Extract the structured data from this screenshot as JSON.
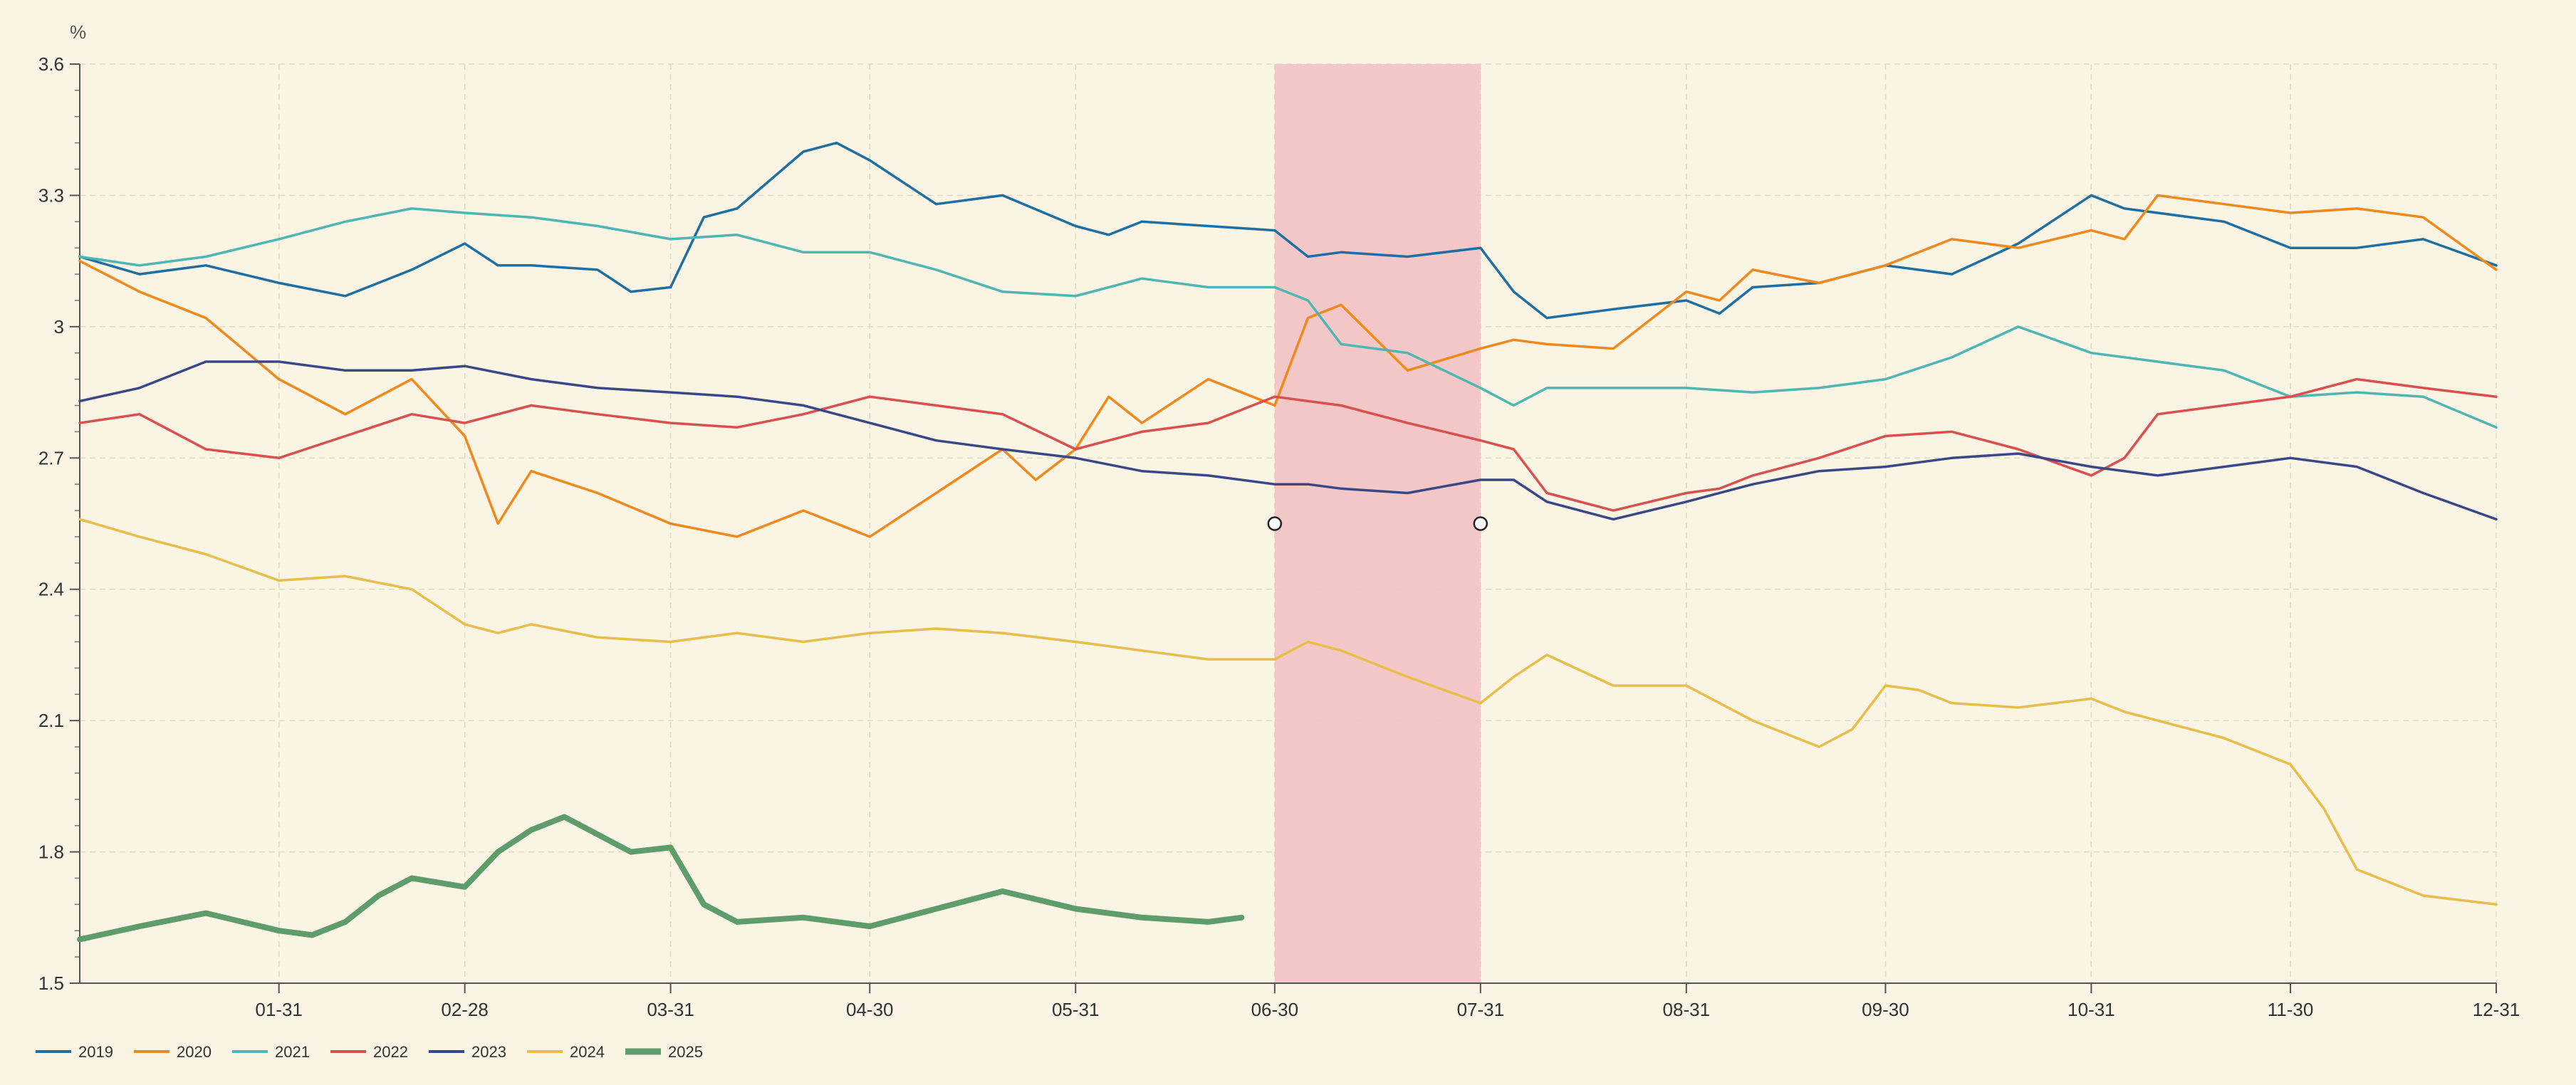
{
  "chart_data": {
    "type": "line",
    "unit_label": "%",
    "ylim": [
      1.5,
      3.6
    ],
    "y_ticks": [
      "1.5",
      "1.8",
      "2.1",
      "2.4",
      "2.7",
      "3",
      "3.3",
      "3.6"
    ],
    "x_ticks": [
      "01-31",
      "02-28",
      "03-31",
      "04-30",
      "05-31",
      "06-30",
      "07-31",
      "08-31",
      "09-30",
      "10-31",
      "11-30",
      "12-31"
    ],
    "grid": true,
    "legend_position": "bottom-left",
    "shaded_region": {
      "start": "06-30",
      "end": "07-31",
      "color": "#f2c4c6"
    },
    "markers": [
      {
        "x": "06-30",
        "y": 2.55
      },
      {
        "x": "07-31",
        "y": 2.55
      }
    ],
    "series": [
      {
        "name": "2019",
        "color": "#1f6fa3",
        "x": [
          "01-01",
          "01-10",
          "01-20",
          "01-31",
          "02-10",
          "02-20",
          "02-28",
          "03-05",
          "03-10",
          "03-20",
          "03-25",
          "03-31",
          "04-05",
          "04-10",
          "04-20",
          "04-25",
          "04-30",
          "05-10",
          "05-20",
          "05-31",
          "06-05",
          "06-10",
          "06-20",
          "06-30",
          "07-05",
          "07-10",
          "07-20",
          "07-31",
          "08-05",
          "08-10",
          "08-20",
          "08-31",
          "09-05",
          "09-10",
          "09-20",
          "09-30",
          "10-10",
          "10-20",
          "10-31",
          "11-05",
          "11-10",
          "11-20",
          "11-30",
          "12-10",
          "12-20",
          "12-31"
        ],
        "values": [
          3.16,
          3.12,
          3.14,
          3.1,
          3.07,
          3.13,
          3.19,
          3.14,
          3.14,
          3.13,
          3.08,
          3.09,
          3.25,
          3.27,
          3.4,
          3.42,
          3.38,
          3.28,
          3.3,
          3.23,
          3.21,
          3.24,
          3.23,
          3.22,
          3.16,
          3.17,
          3.16,
          3.18,
          3.08,
          3.02,
          3.04,
          3.06,
          3.03,
          3.09,
          3.1,
          3.14,
          3.12,
          3.19,
          3.3,
          3.27,
          3.26,
          3.24,
          3.18,
          3.18,
          3.2,
          3.14
        ]
      },
      {
        "name": "2020",
        "color": "#f0891d",
        "x": [
          "01-01",
          "01-10",
          "01-20",
          "01-31",
          "02-10",
          "02-20",
          "02-28",
          "03-05",
          "03-10",
          "03-20",
          "03-31",
          "04-10",
          "04-20",
          "04-30",
          "05-10",
          "05-20",
          "05-25",
          "05-31",
          "06-05",
          "06-10",
          "06-20",
          "06-30",
          "07-05",
          "07-10",
          "07-20",
          "07-31",
          "08-05",
          "08-10",
          "08-20",
          "08-31",
          "09-05",
          "09-10",
          "09-20",
          "09-30",
          "10-10",
          "10-20",
          "10-31",
          "11-05",
          "11-10",
          "11-20",
          "11-30",
          "12-10",
          "12-20",
          "12-31"
        ],
        "values": [
          3.15,
          3.08,
          3.02,
          2.88,
          2.8,
          2.88,
          2.75,
          2.55,
          2.67,
          2.62,
          2.55,
          2.52,
          2.58,
          2.52,
          2.62,
          2.72,
          2.65,
          2.72,
          2.84,
          2.78,
          2.88,
          2.82,
          3.02,
          3.05,
          2.9,
          2.95,
          2.97,
          2.96,
          2.95,
          3.08,
          3.06,
          3.13,
          3.1,
          3.14,
          3.2,
          3.18,
          3.22,
          3.2,
          3.3,
          3.28,
          3.26,
          3.27,
          3.25,
          3.13
        ]
      },
      {
        "name": "2021",
        "color": "#4fb7b3",
        "x": [
          "01-01",
          "01-10",
          "01-20",
          "01-31",
          "02-10",
          "02-20",
          "02-28",
          "03-10",
          "03-20",
          "03-31",
          "04-10",
          "04-20",
          "04-30",
          "05-10",
          "05-20",
          "05-31",
          "06-10",
          "06-20",
          "06-30",
          "07-05",
          "07-10",
          "07-20",
          "07-31",
          "08-05",
          "08-10",
          "08-20",
          "08-31",
          "09-10",
          "09-20",
          "09-30",
          "10-10",
          "10-20",
          "10-31",
          "11-10",
          "11-20",
          "11-30",
          "12-10",
          "12-20",
          "12-31"
        ],
        "values": [
          3.16,
          3.14,
          3.16,
          3.2,
          3.24,
          3.27,
          3.26,
          3.25,
          3.23,
          3.2,
          3.21,
          3.17,
          3.17,
          3.13,
          3.08,
          3.07,
          3.11,
          3.09,
          3.09,
          3.06,
          2.96,
          2.94,
          2.86,
          2.82,
          2.86,
          2.86,
          2.86,
          2.85,
          2.86,
          2.88,
          2.93,
          3.0,
          2.94,
          2.92,
          2.9,
          2.84,
          2.85,
          2.84,
          2.77
        ]
      },
      {
        "name": "2022",
        "color": "#d9504f",
        "x": [
          "01-01",
          "01-10",
          "01-20",
          "01-31",
          "02-10",
          "02-20",
          "02-28",
          "03-10",
          "03-20",
          "03-31",
          "04-10",
          "04-20",
          "04-30",
          "05-10",
          "05-20",
          "05-31",
          "06-10",
          "06-20",
          "06-30",
          "07-05",
          "07-10",
          "07-20",
          "07-31",
          "08-05",
          "08-10",
          "08-20",
          "08-31",
          "09-05",
          "09-10",
          "09-20",
          "09-30",
          "10-10",
          "10-20",
          "10-31",
          "11-05",
          "11-10",
          "11-20",
          "11-30",
          "12-10",
          "12-20",
          "12-31"
        ],
        "values": [
          2.78,
          2.8,
          2.72,
          2.7,
          2.75,
          2.8,
          2.78,
          2.82,
          2.8,
          2.78,
          2.77,
          2.8,
          2.84,
          2.82,
          2.8,
          2.72,
          2.76,
          2.78,
          2.84,
          2.83,
          2.82,
          2.78,
          2.74,
          2.72,
          2.62,
          2.58,
          2.62,
          2.63,
          2.66,
          2.7,
          2.75,
          2.76,
          2.72,
          2.66,
          2.7,
          2.8,
          2.82,
          2.84,
          2.88,
          2.86,
          2.84
        ]
      },
      {
        "name": "2023",
        "color": "#3b4888",
        "x": [
          "01-01",
          "01-10",
          "01-20",
          "01-31",
          "02-10",
          "02-20",
          "02-28",
          "03-10",
          "03-20",
          "03-31",
          "04-10",
          "04-20",
          "04-30",
          "05-10",
          "05-20",
          "05-31",
          "06-10",
          "06-20",
          "06-30",
          "07-05",
          "07-10",
          "07-20",
          "07-31",
          "08-05",
          "08-10",
          "08-20",
          "08-31",
          "09-10",
          "09-20",
          "09-30",
          "10-10",
          "10-20",
          "10-31",
          "11-10",
          "11-20",
          "11-30",
          "12-10",
          "12-20",
          "12-31"
        ],
        "values": [
          2.83,
          2.86,
          2.92,
          2.92,
          2.9,
          2.9,
          2.91,
          2.88,
          2.86,
          2.85,
          2.84,
          2.82,
          2.78,
          2.74,
          2.72,
          2.7,
          2.67,
          2.66,
          2.64,
          2.64,
          2.63,
          2.62,
          2.65,
          2.65,
          2.6,
          2.56,
          2.6,
          2.64,
          2.67,
          2.68,
          2.7,
          2.71,
          2.68,
          2.66,
          2.68,
          2.7,
          2.68,
          2.62,
          2.56
        ]
      },
      {
        "name": "2024",
        "color": "#e8bd4a",
        "x": [
          "01-01",
          "01-10",
          "01-20",
          "01-31",
          "02-10",
          "02-20",
          "02-28",
          "03-05",
          "03-10",
          "03-20",
          "03-31",
          "04-10",
          "04-20",
          "04-30",
          "05-10",
          "05-20",
          "05-31",
          "06-10",
          "06-20",
          "06-30",
          "07-05",
          "07-10",
          "07-20",
          "07-31",
          "08-05",
          "08-10",
          "08-20",
          "08-31",
          "09-05",
          "09-10",
          "09-20",
          "09-25",
          "09-30",
          "10-05",
          "10-10",
          "10-20",
          "10-31",
          "11-05",
          "11-10",
          "11-20",
          "11-30",
          "12-05",
          "12-10",
          "12-20",
          "12-31"
        ],
        "values": [
          2.56,
          2.52,
          2.48,
          2.42,
          2.43,
          2.4,
          2.32,
          2.3,
          2.32,
          2.29,
          2.28,
          2.3,
          2.28,
          2.3,
          2.31,
          2.3,
          2.28,
          2.26,
          2.24,
          2.24,
          2.28,
          2.26,
          2.2,
          2.14,
          2.2,
          2.25,
          2.18,
          2.18,
          2.14,
          2.1,
          2.04,
          2.08,
          2.18,
          2.17,
          2.14,
          2.13,
          2.15,
          2.12,
          2.1,
          2.06,
          2.0,
          1.9,
          1.76,
          1.7,
          1.68
        ]
      },
      {
        "name": "2025",
        "color": "#5e9c6b",
        "x": [
          "01-01",
          "01-10",
          "01-20",
          "01-31",
          "02-05",
          "02-10",
          "02-15",
          "02-20",
          "02-28",
          "03-05",
          "03-10",
          "03-15",
          "03-20",
          "03-25",
          "03-31",
          "04-05",
          "04-10",
          "04-20",
          "04-30",
          "05-10",
          "05-20",
          "05-31",
          "06-10",
          "06-20",
          "06-25"
        ],
        "values": [
          1.6,
          1.63,
          1.66,
          1.62,
          1.61,
          1.64,
          1.7,
          1.74,
          1.72,
          1.8,
          1.85,
          1.88,
          1.84,
          1.8,
          1.81,
          1.68,
          1.64,
          1.65,
          1.63,
          1.67,
          1.71,
          1.67,
          1.65,
          1.64,
          1.65
        ]
      }
    ]
  }
}
